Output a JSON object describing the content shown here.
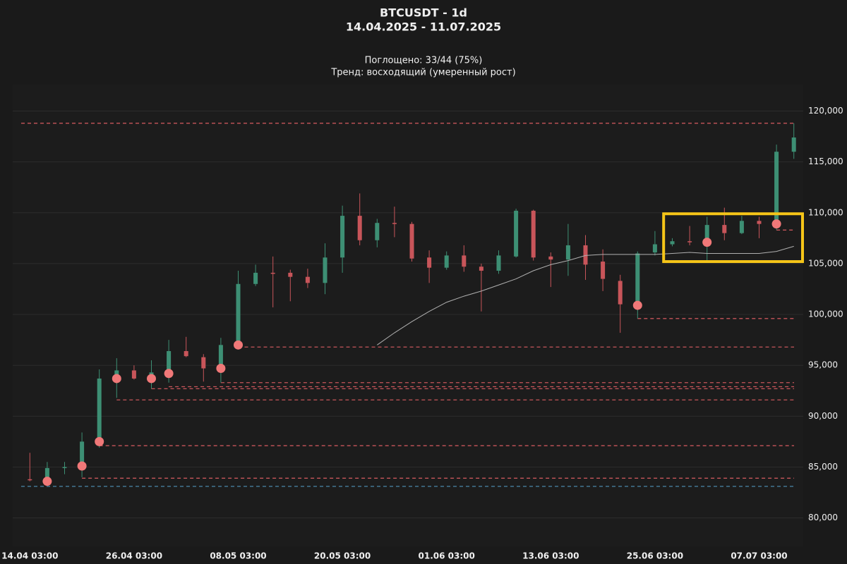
{
  "chart_data": {
    "type": "candlestick",
    "title": "BTCUSDT - 1d",
    "subtitle": "14.04.2025 - 11.07.2025",
    "annotations": [
      "Поглощено: 33/44 (75%)",
      "Тренд: восходящий (умеренный рост)"
    ],
    "categories": [
      "14.04 03:00",
      null,
      null,
      null,
      null,
      null,
      "26.04 03:00",
      null,
      null,
      null,
      null,
      null,
      "08.05 03:00",
      null,
      null,
      null,
      null,
      null,
      "20.05 03:00",
      null,
      null,
      null,
      null,
      null,
      "01.06 03:00",
      null,
      null,
      null,
      null,
      null,
      "13.06 03:00",
      null,
      null,
      null,
      null,
      null,
      "25.06 03:00",
      null,
      null,
      null,
      null,
      null,
      "07.07 03:00",
      null,
      null
    ],
    "open": [
      83800,
      83600,
      84900,
      85000,
      87400,
      93700,
      94500,
      93700,
      94200,
      96400,
      95800,
      94700,
      97000,
      103000,
      104100,
      104100,
      103700,
      103100,
      105600,
      109700,
      107300,
      109000,
      108900,
      105600,
      104600,
      105800,
      104700,
      104300,
      105700,
      110200,
      105700,
      105400,
      106800,
      105200,
      103300,
      100900,
      106100,
      106900,
      107200,
      107100,
      108800,
      108000,
      109200,
      108900,
      116000
    ],
    "high": [
      86400,
      85500,
      85500,
      88400,
      94600,
      95700,
      95000,
      95500,
      97500,
      97800,
      96100,
      97700,
      104300,
      104900,
      105700,
      104400,
      104500,
      107000,
      110700,
      111900,
      109400,
      110600,
      109100,
      106300,
      106200,
      106800,
      105000,
      106300,
      110400,
      110300,
      106100,
      108900,
      107800,
      106400,
      103900,
      106200,
      108200,
      107500,
      108700,
      109600,
      110500,
      109700,
      109600,
      116700,
      118800
    ],
    "low": [
      83600,
      83200,
      84300,
      84000,
      86900,
      91800,
      93600,
      92700,
      93300,
      95800,
      93400,
      93300,
      96800,
      102800,
      100700,
      101300,
      102600,
      102000,
      104100,
      106800,
      106600,
      107600,
      105200,
      103100,
      104400,
      104200,
      100300,
      104000,
      105600,
      105300,
      102700,
      103800,
      103400,
      102300,
      98200,
      99600,
      105800,
      106700,
      106800,
      105300,
      107300,
      107900,
      107500,
      108300,
      115300
    ],
    "close": [
      83700,
      84900,
      85000,
      87500,
      93700,
      94500,
      93700,
      94300,
      96400,
      95900,
      94700,
      97000,
      103000,
      104100,
      104000,
      103700,
      103100,
      105600,
      109700,
      107300,
      109000,
      108900,
      105500,
      104600,
      105800,
      104700,
      104300,
      105800,
      110200,
      105600,
      105400,
      106800,
      104900,
      103500,
      101000,
      106000,
      106900,
      107200,
      107100,
      108800,
      108000,
      109200,
      108900,
      116000,
      117400
    ],
    "up_color": "#3d8f74",
    "down_color": "#c8555a",
    "signals": [
      null,
      83600,
      null,
      85100,
      87500,
      93700,
      null,
      93700,
      94200,
      null,
      null,
      94700,
      97000,
      null,
      null,
      null,
      null,
      null,
      null,
      null,
      null,
      null,
      null,
      null,
      null,
      null,
      null,
      null,
      null,
      null,
      null,
      null,
      null,
      null,
      null,
      100900,
      null,
      null,
      null,
      107100,
      null,
      null,
      null,
      108900,
      null
    ],
    "signal_color": "#f07878",
    "ma": [
      null,
      null,
      null,
      null,
      null,
      null,
      null,
      null,
      null,
      null,
      null,
      null,
      null,
      null,
      null,
      null,
      null,
      null,
      null,
      null,
      97000,
      98200,
      99300,
      100300,
      101200,
      101800,
      102300,
      102900,
      103500,
      104300,
      104900,
      105300,
      105800,
      105900,
      105900,
      105900,
      105900,
      106000,
      106100,
      106000,
      106000,
      106000,
      106000,
      106200,
      106700
    ],
    "ma_color": "#b0b0b0",
    "levels": [
      {
        "value": 118800,
        "start": 0,
        "color": "#c8555a"
      },
      {
        "value": 83100,
        "start": 0,
        "color": "#4a86a8"
      },
      {
        "value": 83900,
        "start": 3,
        "color": "#c8555a"
      },
      {
        "value": 87100,
        "start": 4,
        "color": "#c8555a"
      },
      {
        "value": 91600,
        "start": 5,
        "color": "#c8555a"
      },
      {
        "value": 92700,
        "start": 7,
        "color": "#c8555a"
      },
      {
        "value": 92900,
        "start": 8,
        "color": "#c8555a"
      },
      {
        "value": 93300,
        "start": 11,
        "color": "#c8555a"
      },
      {
        "value": 96800,
        "start": 12,
        "color": "#c8555a"
      },
      {
        "value": 99600,
        "start": 35,
        "color": "#c8555a"
      },
      {
        "value": 108300,
        "start": 43,
        "color": "#c8555a"
      }
    ],
    "highlight": {
      "start": 37,
      "end": 44,
      "low": 105200,
      "high": 109900,
      "color": "#f5c518"
    },
    "ylim": [
      77200,
      122600
    ],
    "yticks": [
      {
        "value": 80000,
        "label": "80,000"
      },
      {
        "value": 85000,
        "label": "85,000"
      },
      {
        "value": 90000,
        "label": "90,000"
      },
      {
        "value": 95000,
        "label": "95,000"
      },
      {
        "value": 100000,
        "label": "100,000"
      },
      {
        "value": 105000,
        "label": "105,000"
      },
      {
        "value": 110000,
        "label": "110,000"
      },
      {
        "value": 115000,
        "label": "115,000"
      },
      {
        "value": 120000,
        "label": "120,000"
      }
    ],
    "grid": true
  }
}
